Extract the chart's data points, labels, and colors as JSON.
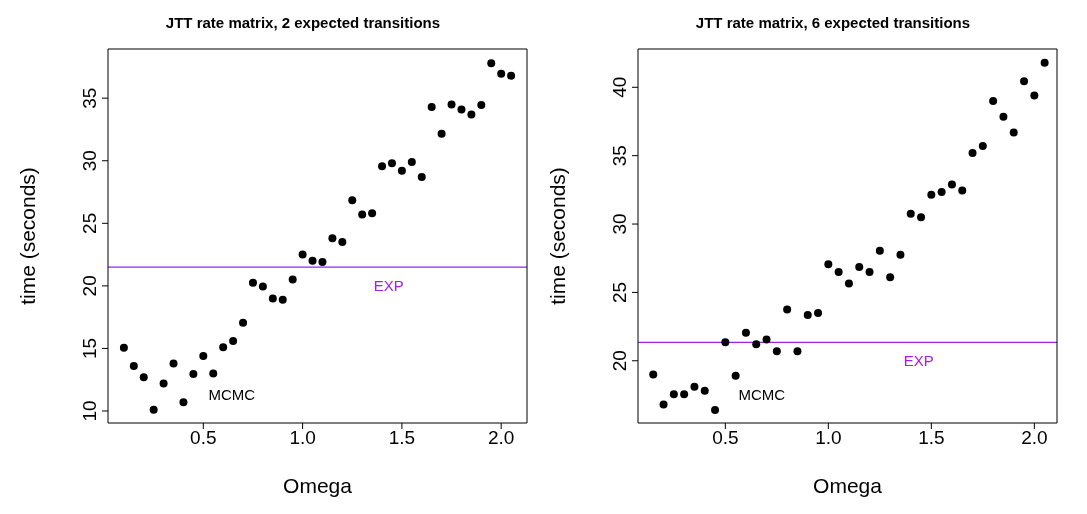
{
  "chart_data": [
    {
      "type": "scatter",
      "title": "JTT rate matrix, 2 expected transitions",
      "xlabel": "Omega",
      "ylabel": "time (seconds)",
      "marker": "circle",
      "grid": false,
      "xlim": [
        0.02,
        2.13
      ],
      "ylim": [
        9.04,
        38.93
      ],
      "xticks": [
        {
          "value": 0.5,
          "label": "0.5"
        },
        {
          "value": 1,
          "label": "1.0"
        },
        {
          "value": 1.5,
          "label": "1.5"
        },
        {
          "value": 2,
          "label": "2.0"
        }
      ],
      "yticks": [
        10,
        15,
        20,
        25,
        30,
        35
      ],
      "x": [
        0.1,
        0.15,
        0.2,
        0.25,
        0.3,
        0.35,
        0.4,
        0.45,
        0.5,
        0.55,
        0.6,
        0.65,
        0.7,
        0.75,
        0.8,
        0.85,
        0.9,
        0.95,
        1.0,
        1.05,
        1.1,
        1.15,
        1.2,
        1.25,
        1.3,
        1.35,
        1.4,
        1.45,
        1.5,
        1.55,
        1.6,
        1.65,
        1.7,
        1.75,
        1.8,
        1.85,
        1.9,
        1.95,
        2.0,
        2.05
      ],
      "series": [
        {
          "color": "#000000",
          "values": [
            15.06,
            13.6,
            12.7,
            10.1,
            12.2,
            13.8,
            10.7,
            12.95,
            14.4,
            13.0,
            15.1,
            15.6,
            17.05,
            20.25,
            19.95,
            19.0,
            18.9,
            20.5,
            22.5,
            22.0,
            21.9,
            23.8,
            23.5,
            26.85,
            25.7,
            25.8,
            29.55,
            29.8,
            29.2,
            29.9,
            28.7,
            34.3,
            32.15,
            34.5,
            34.1,
            33.7,
            34.45,
            37.8,
            36.95,
            36.8
          ]
        }
      ],
      "ref_lines": [
        {
          "axis": "y",
          "value": 21.5,
          "label": "EXP",
          "color": "#a020f0"
        }
      ],
      "annotations": [
        "MCMC"
      ]
    },
    {
      "type": "scatter",
      "title": "JTT rate matrix, 6 expected transitions",
      "xlabel": "Omega",
      "ylabel": "time (seconds)",
      "marker": "circle",
      "grid": false,
      "xlim": [
        0.076,
        2.11
      ],
      "ylim": [
        15.45,
        42.8
      ],
      "xticks": [
        {
          "value": 0.5,
          "label": "0.5"
        },
        {
          "value": 1,
          "label": "1.0"
        },
        {
          "value": 1.5,
          "label": "1.5"
        },
        {
          "value": 2,
          "label": "2.0"
        }
      ],
      "yticks": [
        20,
        25,
        30,
        35,
        40
      ],
      "x": [
        0.15,
        0.2,
        0.25,
        0.3,
        0.35,
        0.4,
        0.45,
        0.5,
        0.55,
        0.6,
        0.65,
        0.7,
        0.75,
        0.8,
        0.85,
        0.9,
        0.95,
        1.0,
        1.05,
        1.1,
        1.15,
        1.2,
        1.25,
        1.3,
        1.35,
        1.4,
        1.45,
        1.5,
        1.55,
        1.6,
        1.65,
        1.7,
        1.75,
        1.8,
        1.85,
        1.9,
        1.95,
        2.0,
        2.05
      ],
      "series": [
        {
          "color": "#000000",
          "values": [
            19.0,
            16.8,
            17.55,
            17.55,
            18.1,
            17.8,
            16.4,
            21.35,
            18.9,
            22.05,
            21.2,
            21.55,
            20.7,
            23.75,
            20.7,
            23.35,
            23.5,
            27.05,
            26.5,
            25.65,
            26.85,
            26.5,
            28.05,
            26.1,
            27.75,
            30.75,
            30.5,
            32.15,
            32.35,
            32.9,
            32.45,
            35.2,
            35.7,
            39.0,
            37.85,
            36.7,
            40.45,
            39.4,
            41.8
          ]
        }
      ],
      "ref_lines": [
        {
          "axis": "y",
          "value": 21.35,
          "label": "EXP",
          "color": "#a020f0"
        }
      ],
      "annotations": [
        "MCMC"
      ]
    }
  ]
}
